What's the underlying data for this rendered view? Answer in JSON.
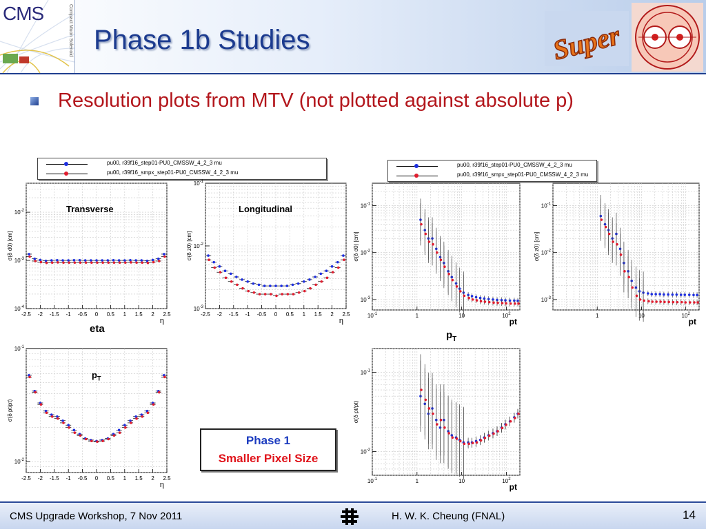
{
  "header": {
    "title": "Phase 1b Studies",
    "logo_text": "CMS",
    "logo_subtext": "Compact Muon Solenoid",
    "super_logo_text": "Super"
  },
  "subtitle": "Resolution plots from MTV (not plotted against absolute p)",
  "legend": {
    "entries": [
      {
        "label": "pu00, r39f16_step01-PU0_CMSSW_4_2_3 mu",
        "color": "#1d2fe0"
      },
      {
        "label": "pu00, r39f16_smpx_step01-PU0_CMSSW_4_2_3 mu",
        "color": "#e01d2f"
      }
    ]
  },
  "labels": {
    "transverse": "Transverse",
    "longitudinal": "Longitudinal",
    "eta": "eta",
    "pt_panel": "p",
    "pt_panel_sub": "T",
    "pt_axis": "p",
    "pt_axis_sub": "T"
  },
  "callout": {
    "line1": "Phase 1",
    "line2": "Smaller Pixel Size"
  },
  "footer": {
    "left": "CMS Upgrade Workshop, 7 Nov 2011",
    "right": "H. W. K. Cheung (FNAL)",
    "page": "14"
  },
  "chart_data": [
    {
      "id": "d0-vs-eta",
      "type": "scatter",
      "title": "Transverse",
      "ylabel": "σ(δ d0) [cm]",
      "xlabel": "η",
      "ylog": true,
      "ylim": [
        0.0001,
        0.04
      ],
      "xlim": [
        -2.5,
        2.5
      ],
      "xticks": [
        -2.5,
        -2,
        -1.5,
        -1,
        -0.5,
        0,
        0.5,
        1,
        1.5,
        2,
        2.5
      ],
      "yticks": [
        0.0001,
        0.001,
        0.01
      ],
      "yticklabels": [
        "10^{-4}",
        "10^{-3}",
        "10^{-2}"
      ],
      "x": [
        -2.4,
        -2.2,
        -2.0,
        -1.8,
        -1.6,
        -1.4,
        -1.2,
        -1.0,
        -0.8,
        -0.6,
        -0.4,
        -0.2,
        0.0,
        0.2,
        0.4,
        0.6,
        0.8,
        1.0,
        1.2,
        1.4,
        1.6,
        1.8,
        2.0,
        2.2,
        2.4
      ],
      "series": [
        {
          "name": "pu00, r39f16_step01-PU0_CMSSW_4_2_3 mu",
          "color": "#1d2fe0",
          "values": [
            0.00135,
            0.00108,
            0.00102,
            0.00098,
            0.001,
            0.00101,
            0.001,
            0.001,
            0.00101,
            0.00101,
            0.001,
            0.001,
            0.001,
            0.001,
            0.001,
            0.00101,
            0.001,
            0.001,
            0.00101,
            0.001,
            0.001,
            0.00098,
            0.00102,
            0.00108,
            0.00135
          ]
        },
        {
          "name": "pu00, r39f16_smpx_step01-PU0_CMSSW_4_2_3 mu",
          "color": "#e01d2f",
          "values": [
            0.0012,
            0.00097,
            0.00092,
            0.00089,
            0.0009,
            0.00091,
            0.0009,
            0.0009,
            0.0009,
            0.0009,
            0.0009,
            0.0009,
            0.0009,
            0.0009,
            0.0009,
            0.0009,
            0.0009,
            0.0009,
            0.00091,
            0.0009,
            0.0009,
            0.00089,
            0.00092,
            0.00097,
            0.0012
          ]
        }
      ]
    },
    {
      "id": "z0-vs-eta",
      "type": "scatter",
      "title": "Longitudinal",
      "ylabel": "σ(δ z0) [cm]",
      "xlabel": "η",
      "ylog": true,
      "ylim": [
        0.001,
        0.1
      ],
      "xlim": [
        -2.5,
        2.5
      ],
      "xticks": [
        -2.5,
        -2,
        -1.5,
        -1,
        -0.5,
        0,
        0.5,
        1,
        1.5,
        2,
        2.5
      ],
      "yticks": [
        0.001,
        0.01,
        0.1
      ],
      "yticklabels": [
        "10^{-3}",
        "10^{-2}",
        "10^{-1}"
      ],
      "x": [
        -2.4,
        -2.2,
        -2.0,
        -1.8,
        -1.6,
        -1.4,
        -1.2,
        -1.0,
        -0.8,
        -0.6,
        -0.4,
        -0.2,
        0.0,
        0.2,
        0.4,
        0.6,
        0.8,
        1.0,
        1.2,
        1.4,
        1.6,
        1.8,
        2.0,
        2.2,
        2.4
      ],
      "series": [
        {
          "name": "pu00, r39f16_step01-PU0_CMSSW_4_2_3 mu",
          "color": "#1d2fe0",
          "values": [
            0.007,
            0.0055,
            0.0047,
            0.004,
            0.0036,
            0.0032,
            0.0029,
            0.0027,
            0.0025,
            0.0024,
            0.0023,
            0.0023,
            0.0023,
            0.0023,
            0.0023,
            0.0024,
            0.0025,
            0.0027,
            0.0029,
            0.0032,
            0.0036,
            0.004,
            0.0047,
            0.0055,
            0.007
          ]
        },
        {
          "name": "pu00, r39f16_smpx_step01-PU0_CMSSW_4_2_3 mu",
          "color": "#e01d2f",
          "values": [
            0.006,
            0.0045,
            0.0038,
            0.0031,
            0.0027,
            0.0024,
            0.0021,
            0.0019,
            0.0018,
            0.0017,
            0.0017,
            0.0017,
            0.0016,
            0.0017,
            0.0017,
            0.0017,
            0.0018,
            0.0019,
            0.0021,
            0.0024,
            0.0027,
            0.0031,
            0.0038,
            0.0045,
            0.006
          ]
        }
      ]
    },
    {
      "id": "pt-vs-eta",
      "type": "scatter",
      "title": "pT",
      "ylabel": "σ(δ pt/pt)",
      "xlabel": "η",
      "ylog": true,
      "ylim": [
        0.008,
        0.1
      ],
      "xlim": [
        -2.5,
        2.5
      ],
      "xticks": [
        -2.5,
        -2,
        -1.5,
        -1,
        -0.5,
        0,
        0.5,
        1,
        1.5,
        2,
        2.5
      ],
      "yticks": [
        0.01,
        0.1
      ],
      "yticklabels": [
        "10^{-2}",
        "10^{-1}"
      ],
      "x": [
        -2.4,
        -2.2,
        -2.0,
        -1.8,
        -1.6,
        -1.4,
        -1.2,
        -1.0,
        -0.8,
        -0.6,
        -0.4,
        -0.2,
        0.0,
        0.2,
        0.4,
        0.6,
        0.8,
        1.0,
        1.2,
        1.4,
        1.6,
        1.8,
        2.0,
        2.2,
        2.4
      ],
      "series": [
        {
          "name": "pu00, r39f16_step01-PU0_CMSSW_4_2_3 mu",
          "color": "#1d2fe0",
          "values": [
            0.058,
            0.042,
            0.033,
            0.028,
            0.026,
            0.025,
            0.023,
            0.021,
            0.019,
            0.0175,
            0.016,
            0.0155,
            0.0152,
            0.0155,
            0.016,
            0.0175,
            0.019,
            0.021,
            0.023,
            0.025,
            0.026,
            0.028,
            0.033,
            0.042,
            0.058
          ]
        },
        {
          "name": "pu00, r39f16_smpx_step01-PU0_CMSSW_4_2_3 mu",
          "color": "#e01d2f",
          "values": [
            0.056,
            0.041,
            0.032,
            0.027,
            0.025,
            0.024,
            0.022,
            0.02,
            0.018,
            0.017,
            0.0158,
            0.0152,
            0.015,
            0.0152,
            0.0158,
            0.017,
            0.018,
            0.02,
            0.022,
            0.024,
            0.025,
            0.027,
            0.032,
            0.041,
            0.056
          ]
        }
      ]
    },
    {
      "id": "d0-vs-pt",
      "type": "scatter",
      "ylabel": "σ(δ d0) [cm]",
      "xlabel": "pt",
      "xlog": true,
      "ylog": true,
      "xlim": [
        0.1,
        200
      ],
      "ylim": [
        0.0006,
        0.3
      ],
      "xticks": [
        0.1,
        1,
        10,
        100
      ],
      "xticklabels": [
        "10^{-1}",
        "1",
        "10",
        "10^{2}"
      ],
      "yticks": [
        0.001,
        0.01,
        0.1
      ],
      "yticklabels": [
        "10^{-3}",
        "10^{-2}",
        "10^{-1}"
      ],
      "x": [
        1.2,
        1.5,
        1.8,
        2.2,
        2.7,
        3.3,
        4,
        5,
        6,
        7.5,
        9,
        11,
        14,
        17,
        21,
        26,
        32,
        40,
        50,
        62,
        78,
        95,
        120,
        150,
        180
      ],
      "series": [
        {
          "name": "pu00, r39f16_step01-PU0_CMSSW_4_2_3 mu",
          "color": "#1d2fe0",
          "values": [
            0.05,
            0.03,
            0.02,
            0.02,
            0.012,
            0.008,
            0.006,
            0.004,
            0.003,
            0.0022,
            0.0017,
            0.0014,
            0.00125,
            0.00118,
            0.00112,
            0.00108,
            0.00105,
            0.00102,
            0.001,
            0.00098,
            0.00097,
            0.00096,
            0.00095,
            0.00095,
            0.00094
          ]
        },
        {
          "name": "pu00, r39f16_smpx_step01-PU0_CMSSW_4_2_3 mu",
          "color": "#e01d2f",
          "values": [
            0.04,
            0.025,
            0.017,
            0.015,
            0.01,
            0.007,
            0.005,
            0.0035,
            0.0026,
            0.0019,
            0.0015,
            0.0012,
            0.00108,
            0.001,
            0.00096,
            0.00092,
            0.0009,
            0.00088,
            0.00086,
            0.00085,
            0.00084,
            0.00083,
            0.00082,
            0.00082,
            0.00082
          ]
        }
      ]
    },
    {
      "id": "z0-vs-pt",
      "type": "scatter",
      "ylabel": "σ(δ z0) [cm]",
      "xlabel": "pt",
      "xlog": true,
      "ylog": true,
      "xlim": [
        0.1,
        200
      ],
      "ylim": [
        0.0006,
        0.3
      ],
      "xticks": [
        1,
        10,
        100
      ],
      "xticklabels": [
        "1",
        "10",
        "10^{2}"
      ],
      "yticks": [
        0.001,
        0.01,
        0.1
      ],
      "yticklabels": [
        "10^{-3}",
        "10^{-2}",
        "10^{-1}"
      ],
      "x": [
        1.2,
        1.5,
        1.8,
        2.2,
        2.7,
        3.3,
        4,
        5,
        6,
        7.5,
        9,
        11,
        14,
        17,
        21,
        26,
        32,
        40,
        50,
        62,
        78,
        95,
        120,
        150,
        180
      ],
      "series": [
        {
          "name": "pu00, r39f16_step01-PU0_CMSSW_4_2_3 mu",
          "color": "#1d2fe0",
          "values": [
            0.06,
            0.04,
            0.03,
            0.02,
            0.025,
            0.012,
            0.006,
            0.004,
            0.0025,
            0.0018,
            0.0015,
            0.0014,
            0.00135,
            0.0013,
            0.0013,
            0.0013,
            0.00128,
            0.00128,
            0.00127,
            0.00127,
            0.00126,
            0.00126,
            0.00126,
            0.00125,
            0.00125
          ]
        },
        {
          "name": "pu00, r39f16_smpx_step01-PU0_CMSSW_4_2_3 mu",
          "color": "#e01d2f",
          "values": [
            0.05,
            0.035,
            0.025,
            0.017,
            0.015,
            0.009,
            0.004,
            0.003,
            0.0018,
            0.0012,
            0.001,
            0.00095,
            0.00092,
            0.0009,
            0.0009,
            0.0009,
            0.00089,
            0.00089,
            0.00088,
            0.00088,
            0.00088,
            0.00087,
            0.00087,
            0.00087,
            0.00087
          ]
        }
      ]
    },
    {
      "id": "pt-vs-pt",
      "type": "scatter",
      "ylabel": "σ(δ pt/pt)",
      "xlabel": "pt",
      "xlog": true,
      "ylog": true,
      "xlim": [
        0.1,
        200
      ],
      "ylim": [
        0.005,
        0.2
      ],
      "xticks": [
        0.1,
        1,
        10,
        100
      ],
      "xticklabels": [
        "10^{-1}",
        "1",
        "10",
        "10^{2}"
      ],
      "yticks": [
        0.01,
        0.1
      ],
      "yticklabels": [
        "10^{-2}",
        "10^{-1}"
      ],
      "x": [
        1.2,
        1.5,
        1.8,
        2.2,
        2.7,
        3.3,
        4,
        5,
        6,
        7.5,
        9,
        11,
        14,
        17,
        21,
        26,
        32,
        40,
        50,
        62,
        78,
        95,
        120,
        150,
        180
      ],
      "series": [
        {
          "name": "pu00, r39f16_step01-PU0_CMSSW_4_2_3 mu",
          "color": "#1d2fe0",
          "values": [
            0.05,
            0.04,
            0.03,
            0.035,
            0.025,
            0.02,
            0.025,
            0.018,
            0.016,
            0.015,
            0.014,
            0.013,
            0.013,
            0.013,
            0.0135,
            0.014,
            0.015,
            0.016,
            0.017,
            0.018,
            0.02,
            0.022,
            0.024,
            0.027,
            0.03
          ]
        },
        {
          "name": "pu00, r39f16_smpx_step01-PU0_CMSSW_4_2_3 mu",
          "color": "#e01d2f",
          "values": [
            0.06,
            0.045,
            0.035,
            0.03,
            0.022,
            0.025,
            0.02,
            0.017,
            0.015,
            0.0145,
            0.0135,
            0.0125,
            0.0125,
            0.0128,
            0.013,
            0.0138,
            0.0148,
            0.0158,
            0.0168,
            0.018,
            0.0198,
            0.0218,
            0.024,
            0.0265,
            0.03
          ]
        }
      ]
    }
  ]
}
